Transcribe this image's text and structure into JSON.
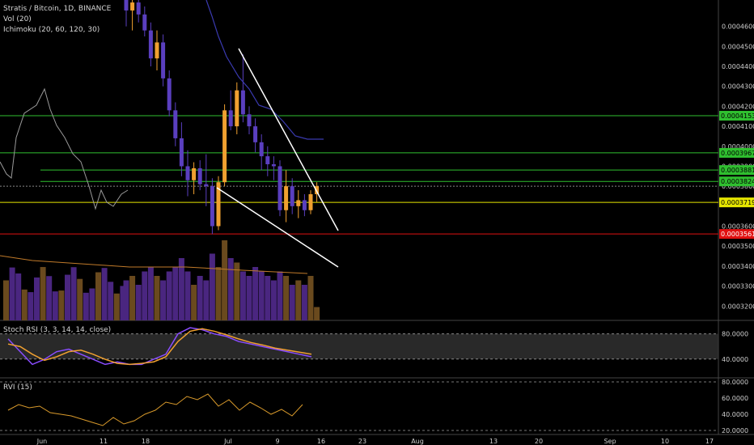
{
  "header": {
    "title": "Stratis / Bitcoin, 1D, BINANCE",
    "vol_label": "Vol (20)",
    "ichimoku_label": "Ichimoku (20, 60, 120, 30)",
    "stoch_label": "Stoch RSI (3, 3, 14, 14, close)",
    "rvi_label": "RVI (15)"
  },
  "colors": {
    "background": "#000000",
    "candle_up": "#f0a030",
    "candle_down": "#5a3fbf",
    "volume_up": "#6a4a1e",
    "volume_down": "#4a2680",
    "support_green": "#2fbf2f",
    "resistance_yellow": "#e6e600",
    "red_line": "#e01010",
    "trendline": "#ffffff",
    "stoch_k": "#8a4cff",
    "stoch_d": "#f0a030",
    "rvi": "#d99a2b"
  },
  "chart_data": {
    "type": "candlestick",
    "price_axis": {
      "ticks": [
        "0.0004600",
        "0.0004500",
        "0.0004400",
        "0.0004300",
        "0.0004200",
        "0.0004100",
        "0.0004000",
        "0.0003900",
        "0.0003800",
        "0.0003600",
        "0.0003500",
        "0.0003400",
        "0.0003300",
        "0.0003200"
      ],
      "range": [
        0.000312,
        0.00047
      ]
    },
    "price_markers": [
      {
        "label": "0.0004153",
        "value": 0.0004153,
        "color": "#2fbf2f"
      },
      {
        "label": "0.0003967",
        "value": 0.0003967,
        "color": "#2fbf2f"
      },
      {
        "label": "0.0003881",
        "value": 0.0003881,
        "color": "#2fbf2f"
      },
      {
        "label": "0.0003824",
        "value": 0.0003824,
        "color": "#2fbf2f"
      },
      {
        "label": "0.0003719",
        "value": 0.0003719,
        "color": "#e6e600"
      },
      {
        "label": "0.0003561",
        "value": 0.0003561,
        "color": "#e01010"
      }
    ],
    "x_axis": {
      "ticks": [
        "Jun",
        "11",
        "18",
        "Jul",
        "9",
        "16",
        "23",
        "Aug",
        "13",
        "20",
        "Sep",
        "10",
        "17"
      ]
    },
    "candles": [
      {
        "o": 0.000475,
        "h": 0.00049,
        "l": 0.00046,
        "c": 0.000468
      },
      {
        "o": 0.000468,
        "h": 0.00048,
        "l": 0.000458,
        "c": 0.000472
      },
      {
        "o": 0.000472,
        "h": 0.000476,
        "l": 0.000462,
        "c": 0.000466
      },
      {
        "o": 0.000466,
        "h": 0.00047,
        "l": 0.000455,
        "c": 0.000458
      },
      {
        "o": 0.000458,
        "h": 0.000462,
        "l": 0.00044,
        "c": 0.000444
      },
      {
        "o": 0.000444,
        "h": 0.000458,
        "l": 0.000438,
        "c": 0.000452
      },
      {
        "o": 0.000452,
        "h": 0.000456,
        "l": 0.00043,
        "c": 0.000434
      },
      {
        "o": 0.000434,
        "h": 0.000438,
        "l": 0.000415,
        "c": 0.000418
      },
      {
        "o": 0.000418,
        "h": 0.000422,
        "l": 0.0004,
        "c": 0.000404
      },
      {
        "o": 0.000404,
        "h": 0.000412,
        "l": 0.000385,
        "c": 0.00039
      },
      {
        "o": 0.00039,
        "h": 0.000398,
        "l": 0.000375,
        "c": 0.000383
      },
      {
        "o": 0.000383,
        "h": 0.000392,
        "l": 0.000376,
        "c": 0.000389
      },
      {
        "o": 0.000389,
        "h": 0.000393,
        "l": 0.000378,
        "c": 0.000381
      },
      {
        "o": 0.000381,
        "h": 0.000396,
        "l": 0.00037,
        "c": 0.00038
      },
      {
        "o": 0.00038,
        "h": 0.000384,
        "l": 0.000356,
        "c": 0.00036
      },
      {
        "o": 0.00036,
        "h": 0.000385,
        "l": 0.000358,
        "c": 0.000382
      },
      {
        "o": 0.000382,
        "h": 0.000421,
        "l": 0.00038,
        "c": 0.000418
      },
      {
        "o": 0.000418,
        "h": 0.000428,
        "l": 0.000408,
        "c": 0.00041
      },
      {
        "o": 0.00041,
        "h": 0.000432,
        "l": 0.000406,
        "c": 0.000428
      },
      {
        "o": 0.000428,
        "h": 0.000446,
        "l": 0.000412,
        "c": 0.000416
      },
      {
        "o": 0.000416,
        "h": 0.00042,
        "l": 0.000406,
        "c": 0.00041
      },
      {
        "o": 0.00041,
        "h": 0.000414,
        "l": 0.000397,
        "c": 0.000402
      },
      {
        "o": 0.000402,
        "h": 0.000406,
        "l": 0.000388,
        "c": 0.000395
      },
      {
        "o": 0.000395,
        "h": 0.0004,
        "l": 0.000385,
        "c": 0.000391
      },
      {
        "o": 0.000391,
        "h": 0.000395,
        "l": 0.000383,
        "c": 0.00039
      },
      {
        "o": 0.00039,
        "h": 0.000393,
        "l": 0.000365,
        "c": 0.000368
      },
      {
        "o": 0.000368,
        "h": 0.000388,
        "l": 0.000362,
        "c": 0.00038
      },
      {
        "o": 0.00038,
        "h": 0.000384,
        "l": 0.000366,
        "c": 0.00037
      },
      {
        "o": 0.00037,
        "h": 0.000378,
        "l": 0.000364,
        "c": 0.000373
      },
      {
        "o": 0.000373,
        "h": 0.000376,
        "l": 0.000365,
        "c": 0.000368
      },
      {
        "o": 0.000368,
        "h": 0.000378,
        "l": 0.000366,
        "c": 0.000376
      },
      {
        "o": 0.000376,
        "h": 0.000382,
        "l": 0.000372,
        "c": 0.00038
      }
    ],
    "volume": [
      0.45,
      0.5,
      0.4,
      0.55,
      0.6,
      0.5,
      0.45,
      0.55,
      0.6,
      0.7,
      0.55,
      0.4,
      0.5,
      0.45,
      0.75,
      0.6,
      0.9,
      0.7,
      0.65,
      0.55,
      0.5,
      0.6,
      0.55,
      0.5,
      0.45,
      0.55,
      0.5,
      0.4,
      0.45,
      0.4,
      0.5,
      0.15
    ],
    "stoch_rsi": {
      "k": [
        70,
        45,
        20,
        30,
        45,
        50,
        40,
        30,
        20,
        25,
        20,
        20,
        30,
        40,
        80,
        92,
        88,
        80,
        75,
        65,
        60,
        55,
        50,
        45,
        40,
        35
      ],
      "d": [
        60,
        55,
        40,
        28,
        35,
        45,
        48,
        40,
        30,
        22,
        20,
        22,
        25,
        35,
        65,
        85,
        90,
        85,
        78,
        70,
        63,
        58,
        52,
        48,
        44,
        40
      ],
      "levels": [
        "80.0000",
        "40.0000"
      ]
    },
    "rvi": {
      "values": [
        45,
        52,
        48,
        50,
        42,
        40,
        38,
        34,
        30,
        26,
        36,
        28,
        32,
        40,
        45,
        55,
        52,
        62,
        58,
        65,
        50,
        58,
        45,
        55,
        48,
        40,
        46,
        38,
        52
      ],
      "ticks": [
        "80.0000",
        "60.0000",
        "40.0000",
        "20.0000"
      ]
    }
  }
}
